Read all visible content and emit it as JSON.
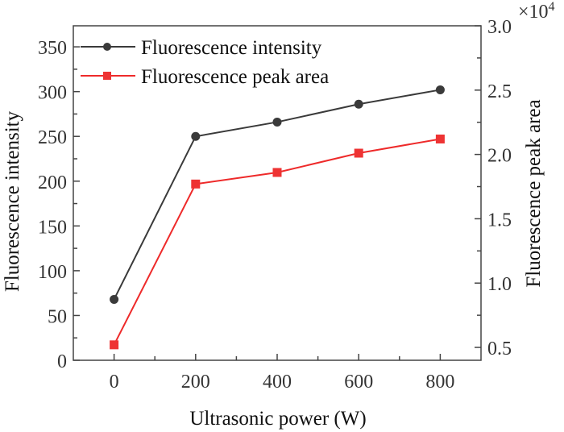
{
  "chart_data": {
    "type": "line",
    "title": "",
    "xlabel": "Ultrasonic power (W)",
    "ylabel": "Fluorescence intensity",
    "y2label": "Fluorescence peak area",
    "y2_multiplier": "×10",
    "y2_exponent": "4",
    "x": [
      0,
      200,
      400,
      600,
      800
    ],
    "xlim": [
      -100,
      900
    ],
    "ylim": [
      0,
      373.5
    ],
    "y2lim": [
      0.4,
      3.0
    ],
    "xticks": [
      "0",
      "200",
      "400",
      "600",
      "800"
    ],
    "yticks": [
      "0",
      "50",
      "100",
      "150",
      "200",
      "250",
      "300",
      "350"
    ],
    "y2ticks": [
      "0.5",
      "1.0",
      "1.5",
      "2.0",
      "2.5",
      "3.0"
    ],
    "legend_position": "top-left",
    "grid": false,
    "series": [
      {
        "name": "Fluorescence intensity",
        "axis": "left",
        "marker": "circle",
        "color": "#3a3a3a",
        "values": [
          68,
          250,
          266,
          286,
          302
        ]
      },
      {
        "name": "Fluorescence peak area",
        "axis": "right",
        "marker": "square",
        "color": "#ee2a2a",
        "values": [
          0.52,
          1.77,
          1.86,
          2.01,
          2.12
        ]
      }
    ]
  }
}
